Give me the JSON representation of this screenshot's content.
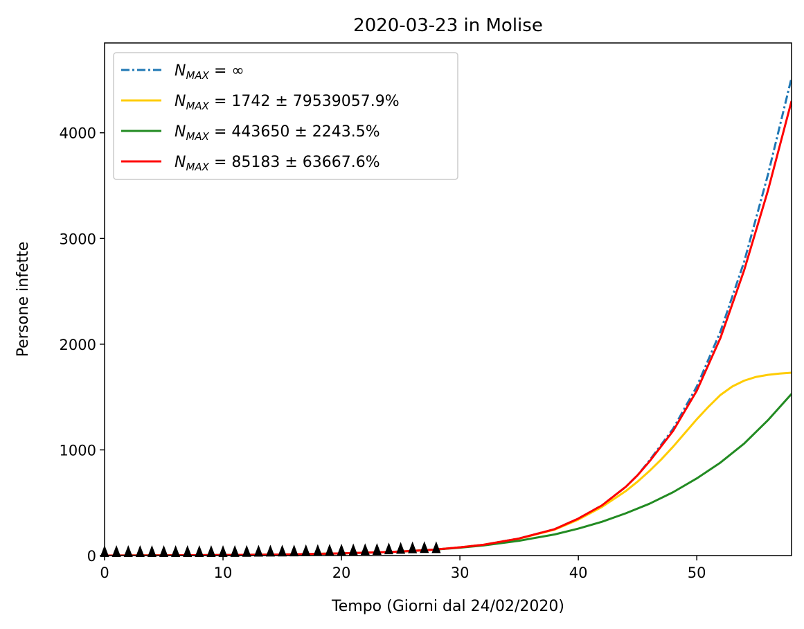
{
  "chart_data": {
    "type": "line",
    "title": "2020-03-23 in Molise",
    "xlabel": "Tempo (Giorni dal 24/02/2020)",
    "ylabel": "Persone infette",
    "xlim": [
      0,
      58
    ],
    "ylim": [
      0,
      4850
    ],
    "xticks": [
      0,
      10,
      20,
      30,
      40,
      50
    ],
    "yticks": [
      0,
      1000,
      2000,
      3000,
      4000
    ],
    "grid": false,
    "legend_position": "top-left",
    "series": [
      {
        "name": "N_MAX = ∞",
        "legend_main": "N",
        "legend_sub": "MAX",
        "legend_rest": " = ∞",
        "color": "#1f77b4",
        "style": "dashdot",
        "x": [
          0,
          5,
          10,
          15,
          20,
          25,
          28,
          30,
          32,
          35,
          38,
          40,
          42,
          44,
          45,
          46,
          48,
          50,
          52,
          54,
          56,
          58
        ],
        "y": [
          0,
          2,
          5,
          10,
          20,
          38,
          58,
          78,
          102,
          162,
          250,
          350,
          475,
          650,
          760,
          900,
          1200,
          1600,
          2120,
          2780,
          3600,
          4520
        ]
      },
      {
        "name": "N_MAX = 1742 ± 79539057.9%",
        "legend_main": "N",
        "legend_sub": "MAX",
        "legend_rest": " = 1742 ± 79539057.9%",
        "color": "#ffcc00",
        "style": "solid",
        "x": [
          0,
          5,
          10,
          15,
          20,
          25,
          28,
          30,
          32,
          35,
          38,
          40,
          42,
          44,
          45,
          46,
          47,
          48,
          49,
          50,
          51,
          52,
          53,
          54,
          55,
          56,
          57,
          58
        ],
        "y": [
          0,
          2,
          5,
          10,
          20,
          38,
          58,
          78,
          102,
          160,
          245,
          340,
          460,
          610,
          700,
          800,
          910,
          1030,
          1160,
          1290,
          1410,
          1520,
          1600,
          1655,
          1690,
          1710,
          1722,
          1730
        ]
      },
      {
        "name": "N_MAX = 443650 ± 2243.5%",
        "legend_main": "N",
        "legend_sub": "MAX",
        "legend_rest": " = 443650 ± 2243.5%",
        "color": "#228b22",
        "style": "solid",
        "x": [
          0,
          5,
          10,
          15,
          20,
          25,
          28,
          30,
          32,
          35,
          38,
          40,
          42,
          44,
          46,
          48,
          50,
          52,
          54,
          56,
          58
        ],
        "y": [
          0,
          2,
          5,
          10,
          20,
          38,
          58,
          75,
          96,
          140,
          200,
          255,
          320,
          400,
          490,
          600,
          730,
          880,
          1060,
          1280,
          1530
        ]
      },
      {
        "name": "N_MAX = 85183 ± 63667.6%",
        "legend_main": "N",
        "legend_sub": "MAX",
        "legend_rest": " = 85183 ± 63667.6%",
        "color": "#ff0000",
        "style": "solid",
        "x": [
          0,
          5,
          10,
          15,
          20,
          25,
          28,
          30,
          32,
          35,
          38,
          40,
          42,
          44,
          45,
          46,
          48,
          50,
          52,
          54,
          56,
          58
        ],
        "y": [
          0,
          2,
          5,
          10,
          20,
          38,
          58,
          78,
          102,
          162,
          250,
          350,
          475,
          650,
          760,
          890,
          1180,
          1560,
          2060,
          2700,
          3450,
          4300
        ]
      }
    ],
    "observed": {
      "marker": "triangle",
      "color": "#000000",
      "x": [
        0,
        1,
        2,
        3,
        4,
        5,
        6,
        7,
        8,
        9,
        10,
        11,
        12,
        13,
        14,
        15,
        16,
        17,
        18,
        19,
        20,
        21,
        22,
        23,
        24,
        25,
        26,
        27,
        28
      ],
      "y": [
        0,
        0,
        0,
        0,
        0,
        0,
        0,
        0,
        0,
        0,
        0,
        1,
        2,
        3,
        4,
        5,
        6,
        8,
        10,
        12,
        14,
        16,
        18,
        20,
        25,
        30,
        35,
        38,
        37
      ]
    }
  }
}
